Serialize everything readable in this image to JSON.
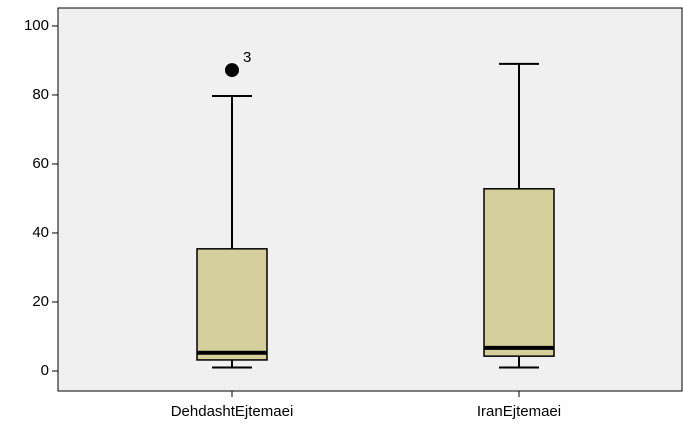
{
  "chart_data": {
    "type": "box",
    "categories": [
      "DehdashtEjtemaei",
      "IranEjtemaei"
    ],
    "boxes": [
      {
        "min": 1,
        "q1": 3.2,
        "median": 5.3,
        "q3": 35.4,
        "max": 79.7,
        "outliers": [
          {
            "value": 87.2,
            "label": "3"
          }
        ]
      },
      {
        "min": 1,
        "q1": 4.3,
        "median": 6.7,
        "q3": 52.8,
        "max": 89,
        "outliers": []
      }
    ],
    "color": "#d4cf9b",
    "background": "#f0f0f0",
    "ylim": [
      -5.8,
      105.2
    ],
    "yticks": [
      0,
      20,
      40,
      60,
      80,
      100
    ]
  }
}
